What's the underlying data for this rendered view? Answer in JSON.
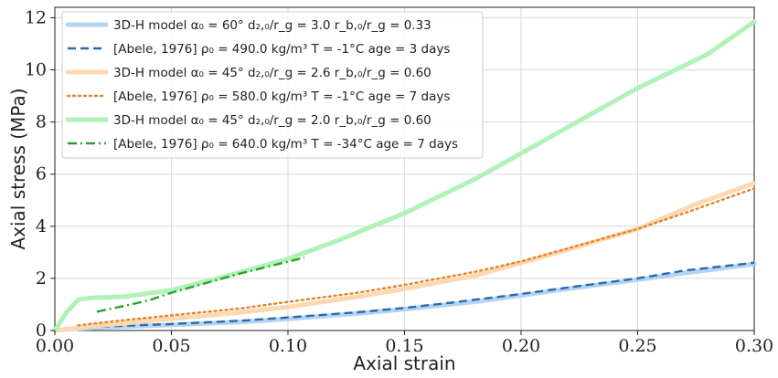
{
  "chart_data": {
    "type": "line",
    "xlabel": "Axial strain",
    "ylabel": "Axial stress (MPa)",
    "xlim": [
      0,
      0.3
    ],
    "ylim": [
      0,
      12.4
    ],
    "xticks": [
      "0.00",
      "0.05",
      "0.10",
      "0.15",
      "0.20",
      "0.25",
      "0.30"
    ],
    "yticks": [
      "0",
      "2",
      "4",
      "6",
      "8",
      "10",
      "12"
    ],
    "grid": true,
    "legend_position": "top-left",
    "series": [
      {
        "name": "3D-H model α₀ = 60°  d₂,₀/r_g = 3.0  r_b,₀/r_g = 0.33",
        "style": "solid-thick",
        "color": "#b3d4f2",
        "x": [
          0,
          0.01,
          0.03,
          0.05,
          0.08,
          0.1,
          0.13,
          0.15,
          0.18,
          0.2,
          0.22,
          0.25,
          0.27,
          0.3
        ],
        "y": [
          0,
          0.08,
          0.15,
          0.22,
          0.33,
          0.45,
          0.65,
          0.82,
          1.1,
          1.35,
          1.6,
          1.95,
          2.2,
          2.55
        ]
      },
      {
        "name": "[Abele, 1976] ρ₀ = 490.0 kg/m³  T = -1°C  age = 3 days",
        "style": "dashed",
        "color": "#2a6aad",
        "x": [
          0.02,
          0.05,
          0.08,
          0.1,
          0.13,
          0.15,
          0.17,
          0.2,
          0.22,
          0.25,
          0.27,
          0.3
        ],
        "y": [
          0.15,
          0.25,
          0.38,
          0.5,
          0.7,
          0.87,
          1.07,
          1.4,
          1.65,
          2.0,
          2.3,
          2.6
        ]
      },
      {
        "name": "3D-H model α₀ = 45°  d₂,₀/r_g = 2.6  r_b,₀/r_g = 0.60",
        "style": "solid-thick",
        "color": "#fcd9b0",
        "x": [
          0,
          0.02,
          0.05,
          0.08,
          0.1,
          0.13,
          0.15,
          0.18,
          0.2,
          0.22,
          0.25,
          0.275,
          0.3
        ],
        "y": [
          0,
          0.2,
          0.45,
          0.7,
          0.9,
          1.3,
          1.6,
          2.1,
          2.6,
          3.1,
          3.9,
          4.85,
          5.65
        ]
      },
      {
        "name": "[Abele, 1976] ρ₀ = 580.0 kg/m³  T = -1°C  age = 7 days",
        "style": "dotted",
        "color": "#e8812a",
        "x": [
          0.01,
          0.03,
          0.05,
          0.08,
          0.1,
          0.13,
          0.15,
          0.18,
          0.2,
          0.22,
          0.25,
          0.27,
          0.3
        ],
        "y": [
          0.2,
          0.4,
          0.58,
          0.85,
          1.1,
          1.45,
          1.75,
          2.25,
          2.65,
          3.15,
          3.9,
          4.5,
          5.45
        ]
      },
      {
        "name": "3D-H model α₀ = 45°  d₂,₀/r_g = 2.0  r_b,₀/r_g = 0.60",
        "style": "solid-thick",
        "color": "#b0f2b8",
        "x": [
          0,
          0.005,
          0.01,
          0.015,
          0.03,
          0.05,
          0.07,
          0.1,
          0.12,
          0.15,
          0.18,
          0.2,
          0.23,
          0.25,
          0.28,
          0.3
        ],
        "y": [
          0,
          0.7,
          1.18,
          1.25,
          1.3,
          1.55,
          2.0,
          2.75,
          3.4,
          4.5,
          5.8,
          6.8,
          8.3,
          9.3,
          10.6,
          11.85
        ]
      },
      {
        "name": "[Abele, 1976] ρ₀ = 640.0 kg/m³  T = -34°C  age = 7 days",
        "style": "dashdot",
        "color": "#2ca02c",
        "x": [
          0.018,
          0.03,
          0.04,
          0.05,
          0.06,
          0.07,
          0.08,
          0.09,
          0.107
        ],
        "y": [
          0.72,
          0.95,
          1.15,
          1.45,
          1.7,
          1.95,
          2.2,
          2.42,
          2.8
        ]
      }
    ]
  }
}
